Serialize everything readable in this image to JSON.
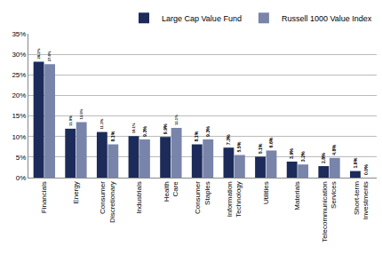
{
  "chart_data": {
    "type": "bar",
    "categories": [
      "Financials",
      "Energy",
      "Consumer Discretionary",
      "Industrials",
      "Health Care",
      "Consumer Staples",
      "Information Technology",
      "Utilities",
      "Materials",
      "Telecommunication Services",
      "Short-term Investments"
    ],
    "series": [
      {
        "name": "Large Cap Value Fund",
        "color": "#1c2b5a",
        "values": [
          28.2,
          11.9,
          11.1,
          10.1,
          9.9,
          8.1,
          7.3,
          5.1,
          3.9,
          2.8,
          1.6
        ],
        "value_labels": [
          "28.2%",
          "11.9%",
          "11.1%",
          "10.1%",
          "9.9%",
          "8.1%",
          "7.3%",
          "5.1%",
          "3.9%",
          "2.8%",
          "1.6%"
        ]
      },
      {
        "name": "Russell 1000 Value Index",
        "color": "#7884aa",
        "values": [
          27.6,
          13.5,
          8.1,
          9.3,
          12.1,
          9.3,
          5.5,
          6.6,
          3.2,
          4.8,
          0.0
        ],
        "value_labels": [
          "27.6%",
          "13.5%",
          "8.1%",
          "9.3%",
          "12.1%",
          "9.3%",
          "5.5%",
          "6.6%",
          "3.2%",
          "4.8%",
          "0.0%"
        ]
      }
    ],
    "ylim": [
      0,
      35
    ],
    "yticks": [
      {
        "value": 0,
        "label": "0%"
      },
      {
        "value": 5,
        "label": "5%"
      },
      {
        "value": 10,
        "label": "10%"
      },
      {
        "value": 15,
        "label": "15%"
      },
      {
        "value": 20,
        "label": "20%"
      },
      {
        "value": 25,
        "label": "25%"
      },
      {
        "value": 30,
        "label": "30%"
      },
      {
        "value": 35,
        "label": "35%"
      }
    ],
    "grid": true,
    "legend": "top-right",
    "data_labels": true
  }
}
